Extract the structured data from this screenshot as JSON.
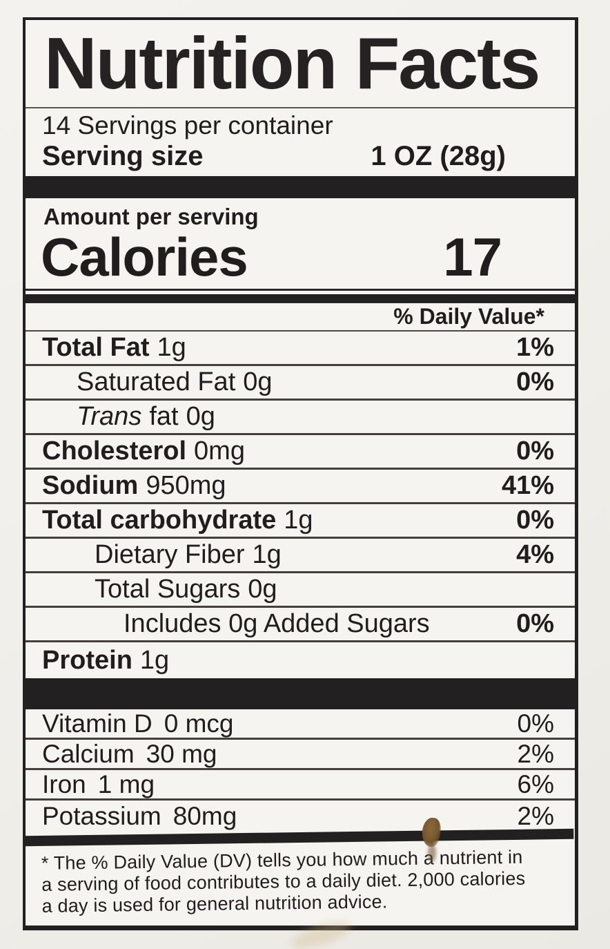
{
  "colors": {
    "ink": "#211d1f",
    "paper": "#f6f4f0",
    "page_background": "#f0eee9",
    "divider_bar": "#232021",
    "stain": "#75552c"
  },
  "label": {
    "title": "Nutrition Facts",
    "servings_per_container": "14 Servings per container",
    "serving_size": {
      "label": "Serving size",
      "value": "1 OZ (28g)"
    },
    "amount_per_serving": "Amount per serving",
    "calories": {
      "label": "Calories",
      "value": "17"
    },
    "daily_value_header": "% Daily Value*",
    "nutrients": [
      {
        "name": "Total Fat",
        "amount": "1g",
        "dv": "1%"
      },
      {
        "name": "Saturated Fat",
        "amount": "0g",
        "dv": "0%"
      },
      {
        "name": "Trans",
        "rest": "fat",
        "amount": "0g",
        "dv": ""
      },
      {
        "name": "Cholesterol",
        "amount": "0mg",
        "dv": "0%"
      },
      {
        "name": "Sodium",
        "amount": "950mg",
        "dv": "41%"
      },
      {
        "name": "Total carbohydrate",
        "amount": "1g",
        "dv": "0%"
      },
      {
        "name": "Dietary Fiber",
        "amount": "1g",
        "dv": "4%"
      },
      {
        "name": "Total Sugars",
        "amount": "0g",
        "dv": ""
      },
      {
        "name": "Includes 0g Added Sugars",
        "amount": "",
        "dv": "0%"
      },
      {
        "name": "Protein",
        "amount": "1g",
        "dv": ""
      }
    ],
    "micronutrients": [
      {
        "name": "Vitamin D",
        "amount": "0 mcg",
        "dv": "0%"
      },
      {
        "name": "Calcium",
        "amount": "30 mg",
        "dv": "2%"
      },
      {
        "name": "Iron",
        "amount": "1 mg",
        "dv": "6%"
      },
      {
        "name": "Potassium",
        "amount": "80mg",
        "dv": "2%"
      }
    ],
    "footnote_lines": [
      "* The % Daily Value (DV) tells you how much a nutrient in",
      "a serving of food contributes to a daily diet. 2,000 calories",
      "a day is used for general nutrition advice."
    ]
  }
}
